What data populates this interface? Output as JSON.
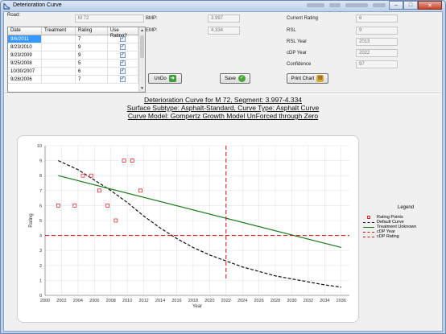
{
  "window": {
    "title": "Deterioration Curve"
  },
  "form": {
    "road_label": "Road:",
    "road_value": "M 72",
    "bmp_label": "BMP:",
    "bmp_value": "3.997",
    "emp_label": "EMP:",
    "emp_value": "4.334",
    "current_rating_label": "Current Rating",
    "current_rating_value": "6",
    "rsl_label": "RSL",
    "rsl_value": "9",
    "rsl_year_label": "RSL Year",
    "rsl_year_value": "2013",
    "cdp_year_label": "cDP Year",
    "cdp_year_value": "2022",
    "confidence_label": "Confidence",
    "confidence_value": "97"
  },
  "grid": {
    "headers": [
      "Date",
      "Treatment",
      "Rating",
      "Use Rating?"
    ],
    "rows": [
      {
        "date": "9/6/2011",
        "treatment": "",
        "rating": "7",
        "use": true,
        "selected": true
      },
      {
        "date": "8/23/2010",
        "treatment": "",
        "rating": "9",
        "use": true
      },
      {
        "date": "9/23/2009",
        "treatment": "",
        "rating": "9",
        "use": true
      },
      {
        "date": "9/25/2008",
        "treatment": "",
        "rating": "5",
        "use": true
      },
      {
        "date": "10/30/2007",
        "treatment": "",
        "rating": "6",
        "use": true
      },
      {
        "date": "9/28/2006",
        "treatment": "",
        "rating": "7",
        "use": true
      }
    ]
  },
  "buttons": {
    "undo": "UnDo",
    "save": "Save",
    "print": "Print Chart"
  },
  "chart_titles": {
    "line1": "Deterioration Curve for M 72, Segment: 3.997-4.334",
    "line2": "Surface Subtype: Asphalt-Standard, Curve Type: Asphalt Curve",
    "line3": "Curve Model: Gompertz Growth Model UnForced through Zero"
  },
  "chart_data": {
    "type": "line",
    "xlabel": "Year",
    "ylabel": "Rating",
    "xlim": [
      2000,
      2037
    ],
    "ylim": [
      0,
      10
    ],
    "x_ticks": [
      2000,
      2002,
      2004,
      2006,
      2008,
      2010,
      2012,
      2014,
      2016,
      2018,
      2020,
      2022,
      2024,
      2026,
      2028,
      2030,
      2032,
      2034,
      2036
    ],
    "y_ticks": [
      0,
      1,
      2,
      3,
      4,
      5,
      6,
      7,
      8,
      9,
      10
    ],
    "grid": true,
    "legend_title": "Legend",
    "legend_position": "right",
    "colors": {
      "points": "#e03030",
      "default": "#111111",
      "treatment": "#1a7a1a",
      "cdp": "#d01010"
    },
    "series": [
      {
        "name": "Rating Points",
        "kind": "points",
        "x": [
          2001.6,
          2003.6,
          2004.6,
          2005.6,
          2006.6,
          2007.6,
          2008.6,
          2009.6,
          2010.6,
          2011.6
        ],
        "y": [
          6,
          6,
          8,
          8,
          7,
          6,
          5,
          9,
          9,
          7
        ]
      },
      {
        "name": "Default Curve",
        "kind": "dashed",
        "x": [
          2001.6,
          2004,
          2006,
          2008,
          2010,
          2012,
          2014,
          2016,
          2018,
          2020,
          2022,
          2024,
          2026,
          2028,
          2030,
          2032,
          2034,
          2036
        ],
        "y": [
          9.0,
          8.4,
          7.7,
          7.0,
          6.2,
          5.3,
          4.5,
          3.8,
          3.2,
          2.7,
          2.3,
          1.9,
          1.6,
          1.3,
          1.1,
          0.9,
          0.7,
          0.55
        ]
      },
      {
        "name": "Treatment Unknown",
        "kind": "line",
        "x": [
          2001.6,
          2036
        ],
        "y": [
          8.0,
          3.2
        ]
      },
      {
        "name": "cDP Year",
        "kind": "vline",
        "x": 2022
      },
      {
        "name": "cDP Rating",
        "kind": "hline",
        "y": 4
      }
    ]
  }
}
